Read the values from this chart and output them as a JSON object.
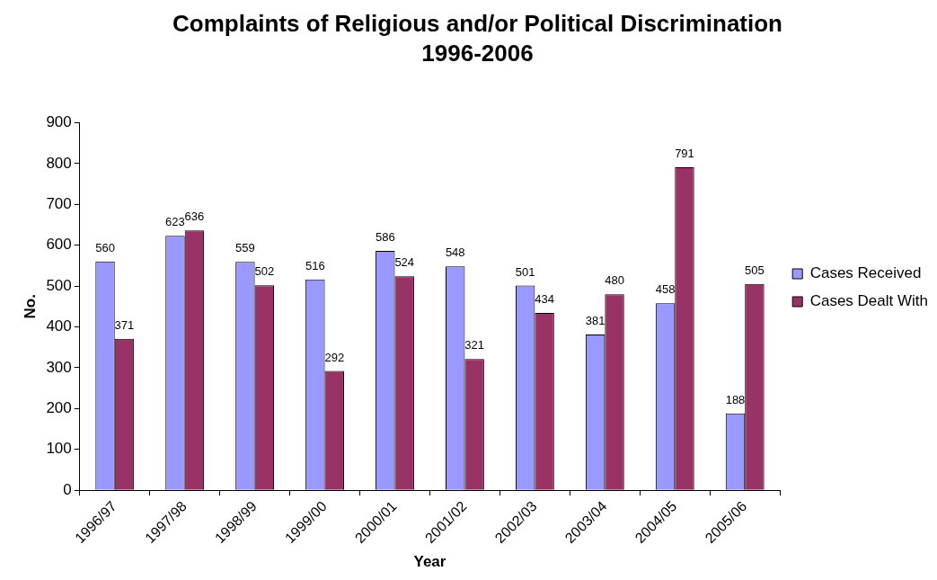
{
  "chart_data": {
    "type": "bar",
    "title": "Complaints of Religious and/or Political Discrimination",
    "subtitle": "1996-2006",
    "xlabel": "Year",
    "ylabel": "No.",
    "categories": [
      "1996/97",
      "1997/98",
      "1998/99",
      "1999/00",
      "2000/01",
      "2001/02",
      "2002/03",
      "2003/04",
      "2004/05",
      "2005/06"
    ],
    "series": [
      {
        "name": "Cases Received",
        "color": "#9999ff",
        "values": [
          560,
          623,
          559,
          516,
          586,
          548,
          501,
          381,
          458,
          188
        ]
      },
      {
        "name": "Cases Dealt With",
        "color": "#993366",
        "values": [
          371,
          636,
          502,
          292,
          524,
          321,
          434,
          480,
          791,
          505
        ]
      }
    ],
    "ylim": [
      0,
      900
    ],
    "yticks": [
      0,
      100,
      200,
      300,
      400,
      500,
      600,
      700,
      800,
      900
    ],
    "grid": false,
    "legend": "right",
    "data_labels": true
  }
}
